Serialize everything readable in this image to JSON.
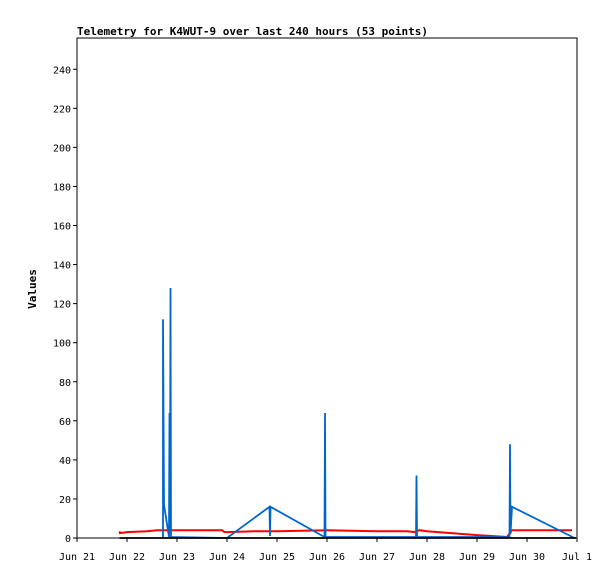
{
  "chart_data": {
    "type": "line",
    "title": "Telemetry for K4WUT-9 over last 240 hours (53 points)",
    "xlabel": "",
    "ylabel": "Values",
    "ylim": [
      0,
      256
    ],
    "xlim": [
      0,
      10
    ],
    "x_ticks": [
      {
        "x": 0,
        "label": "Jun 21"
      },
      {
        "x": 1,
        "label": "Jun 22"
      },
      {
        "x": 2,
        "label": "Jun 23"
      },
      {
        "x": 3,
        "label": "Jun 24"
      },
      {
        "x": 4,
        "label": "Jun 25"
      },
      {
        "x": 5,
        "label": "Jun 26"
      },
      {
        "x": 6,
        "label": "Jun 27"
      },
      {
        "x": 7,
        "label": "Jun 28"
      },
      {
        "x": 8,
        "label": "Jun 29"
      },
      {
        "x": 9,
        "label": "Jun 30"
      },
      {
        "x": 10,
        "label": "Jul 1"
      }
    ],
    "y_ticks": [
      0,
      20,
      40,
      60,
      80,
      100,
      120,
      140,
      160,
      180,
      200,
      220,
      240
    ],
    "grid": false,
    "series": [
      {
        "color": "#ff0000",
        "points": [
          [
            0.85,
            3.5
          ],
          [
            0.86,
            2.5
          ],
          [
            1.0,
            3.0
          ],
          [
            1.4,
            3.5
          ],
          [
            1.6,
            4.0
          ],
          [
            2.0,
            4.0
          ],
          [
            2.9,
            4.0
          ],
          [
            2.95,
            3.0
          ],
          [
            3.0,
            3.0
          ],
          [
            3.6,
            3.5
          ],
          [
            4.0,
            3.5
          ],
          [
            5.0,
            4.0
          ],
          [
            6.0,
            3.5
          ],
          [
            6.6,
            3.5
          ],
          [
            6.75,
            3.0
          ],
          [
            6.85,
            4.0
          ],
          [
            7.0,
            3.5
          ],
          [
            8.0,
            1.5
          ],
          [
            8.6,
            0.5
          ],
          [
            8.7,
            4.0
          ],
          [
            9.0,
            4.0
          ],
          [
            9.9,
            4.0
          ]
        ]
      },
      {
        "color": "#0066cc",
        "points": [
          [
            1.72,
            0.0
          ],
          [
            1.72,
            112.0
          ],
          [
            1.73,
            64.0
          ],
          [
            1.74,
            17.0
          ],
          [
            1.84,
            0.5
          ],
          [
            1.85,
            64.0
          ],
          [
            1.86,
            1.5
          ],
          [
            1.87,
            128.0
          ],
          [
            1.88,
            0.5
          ],
          [
            3.0,
            0.0
          ],
          [
            3.85,
            16.0
          ],
          [
            3.86,
            1.0
          ],
          [
            3.87,
            16.0
          ],
          [
            4.95,
            0.5
          ],
          [
            4.96,
            64.0
          ],
          [
            4.97,
            0.5
          ],
          [
            6.78,
            0.5
          ],
          [
            6.79,
            32.0
          ],
          [
            6.8,
            0.5
          ],
          [
            8.65,
            0.5
          ],
          [
            8.66,
            48.0
          ],
          [
            8.67,
            2.0
          ],
          [
            8.7,
            16.0
          ],
          [
            9.95,
            0.0
          ]
        ]
      },
      {
        "color": "#000000",
        "points": [
          [
            0.85,
            0.0
          ],
          [
            9.98,
            0.0
          ]
        ]
      }
    ]
  }
}
